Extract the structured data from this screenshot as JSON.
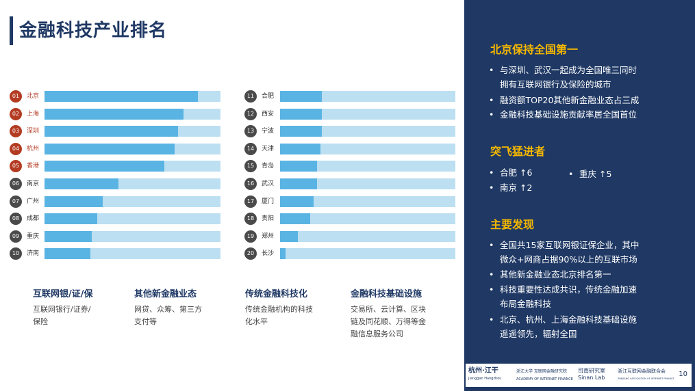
{
  "header": {
    "title": "金融科技产业排名"
  },
  "colors": {
    "navy": "#1f3864",
    "red_rank": "#b33b22",
    "gray_rank": "#4a4a4a",
    "bar_fill": "#5ab4e3",
    "bar_track": "#bcdff2",
    "gold": "#f5b800"
  },
  "chart_data": [
    {
      "type": "bar",
      "orientation": "horizontal",
      "categories": [
        "北京",
        "上海",
        "深圳",
        "杭州",
        "香港",
        "南京",
        "广州",
        "成都",
        "重庆",
        "济南"
      ],
      "ranks": [
        "01",
        "02",
        "03",
        "04",
        "05",
        "06",
        "07",
        "08",
        "09",
        "10"
      ],
      "values": [
        87,
        79,
        76,
        74,
        68,
        42,
        33,
        30,
        27,
        26
      ],
      "xlim": [
        0,
        100
      ]
    },
    {
      "type": "bar",
      "orientation": "horizontal",
      "categories": [
        "合肥",
        "西安",
        "宁波",
        "天津",
        "青岛",
        "武汉",
        "厦门",
        "贵阳",
        "郑州",
        "长沙"
      ],
      "ranks": [
        "11",
        "12",
        "13",
        "14",
        "15",
        "16",
        "17",
        "18",
        "19",
        "20"
      ],
      "values": [
        24,
        24,
        24,
        23,
        21,
        21,
        19,
        17,
        10,
        3
      ],
      "xlim": [
        0,
        100
      ]
    }
  ],
  "categories_legend": [
    {
      "title": "互联网银/证/保",
      "desc": [
        "互联网银行/证券/",
        "保险"
      ]
    },
    {
      "title": "其他新金融业态",
      "desc": [
        "网贷、众筹、第三方",
        "支付等"
      ]
    },
    {
      "title": "传统金融科技化",
      "desc": [
        "传统金融机构的科技",
        "化水平"
      ]
    },
    {
      "title": "金融科技基础设施",
      "desc": [
        "交易所、云计算、区块",
        "链及同花顺、万得等金",
        "融信息服务公司"
      ]
    }
  ],
  "panel": {
    "sections": [
      {
        "title": "北京保持全国第一",
        "bullets": [
          [
            "与深圳、武汉一起成为全国唯三同时",
            "拥有互联网银行及保险的城市"
          ],
          [
            "融资额TOP20其他新金融业态占三成"
          ],
          [
            "金融科技基础设施贡献率居全国首位"
          ]
        ]
      },
      {
        "title": "突飞猛进者",
        "bullets": [
          [
            "合肥 ↑6"
          ],
          [
            "重庆 ↑5"
          ],
          [
            "南京 ↑2"
          ]
        ]
      },
      {
        "title": "主要发现",
        "bullets": [
          [
            "全国共15家互联网银证保企业，其中",
            "微众+网商占据90%以上的互联市场"
          ],
          [
            "其他新金融业态北京排名第一"
          ],
          [
            "科技重要性达成共识，传统金融加速",
            "布局金融科技"
          ],
          [
            "北京、杭州、上海金融科技基础设施",
            "遥遥领先，辐射全国"
          ]
        ]
      }
    ]
  },
  "footer": {
    "logos": [
      {
        "name": "杭州·江干",
        "sub": "Jianggan Hangzhou"
      },
      {
        "name": "浙江大学 互联网金融研究院",
        "sub": "ACADEMY OF INTERNET FINANCE"
      },
      {
        "name": "司南研究室",
        "sub": "Sinan Lab"
      },
      {
        "name": "浙江互联网金融联合会",
        "sub": "ZHEJIANG ASSOCIATION OF INTERNET FINANCE"
      }
    ],
    "page_number": "10"
  }
}
